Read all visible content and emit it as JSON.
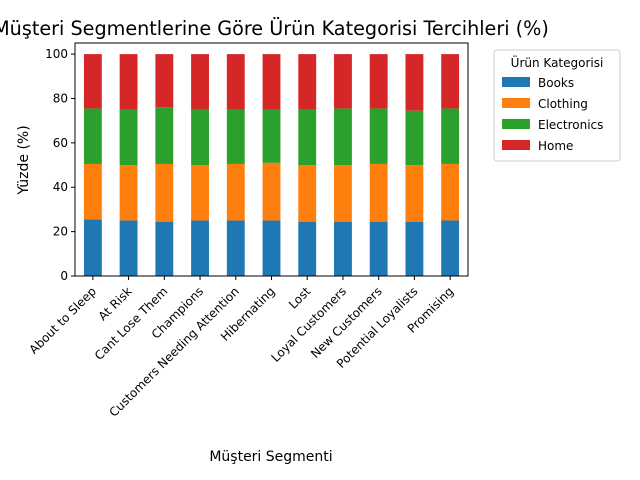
{
  "chart_data": {
    "type": "bar",
    "stacked": true,
    "title": "Müşteri Segmentlerine Göre Ürün Kategorisi Tercihleri (%)",
    "xlabel": "Müşteri Segmenti",
    "ylabel": "Yüzde (%)",
    "ylim": [
      0,
      105
    ],
    "yticks": [
      0,
      20,
      40,
      60,
      80,
      100
    ],
    "grid": false,
    "legend": {
      "title": "Ürün Kategorisi",
      "placement": "outside-right-top"
    },
    "categories": [
      "About to Sleep",
      "At Risk",
      "Cant Lose Them",
      "Champions",
      "Customers Needing Attention",
      "Hibernating",
      "Lost",
      "Loyal Customers",
      "New Customers",
      "Potential Loyalists",
      "Promising"
    ],
    "series": [
      {
        "name": "Books",
        "color": "#1f77b4",
        "values": [
          25.5,
          25.0,
          24.5,
          25.0,
          25.0,
          25.0,
          24.5,
          24.5,
          24.5,
          24.5,
          25.0
        ]
      },
      {
        "name": "Clothing",
        "color": "#ff7f0e",
        "values": [
          25.0,
          25.0,
          26.0,
          25.0,
          25.5,
          26.0,
          25.5,
          25.5,
          26.0,
          25.5,
          25.5
        ]
      },
      {
        "name": "Electronics",
        "color": "#2ca02c",
        "values": [
          25.0,
          25.0,
          25.5,
          25.0,
          24.5,
          24.0,
          25.0,
          25.5,
          25.0,
          24.5,
          25.0
        ]
      },
      {
        "name": "Home",
        "color": "#d62728",
        "values": [
          24.5,
          25.0,
          24.0,
          25.0,
          25.0,
          25.0,
          25.0,
          24.5,
          24.5,
          25.5,
          24.5
        ]
      }
    ]
  }
}
